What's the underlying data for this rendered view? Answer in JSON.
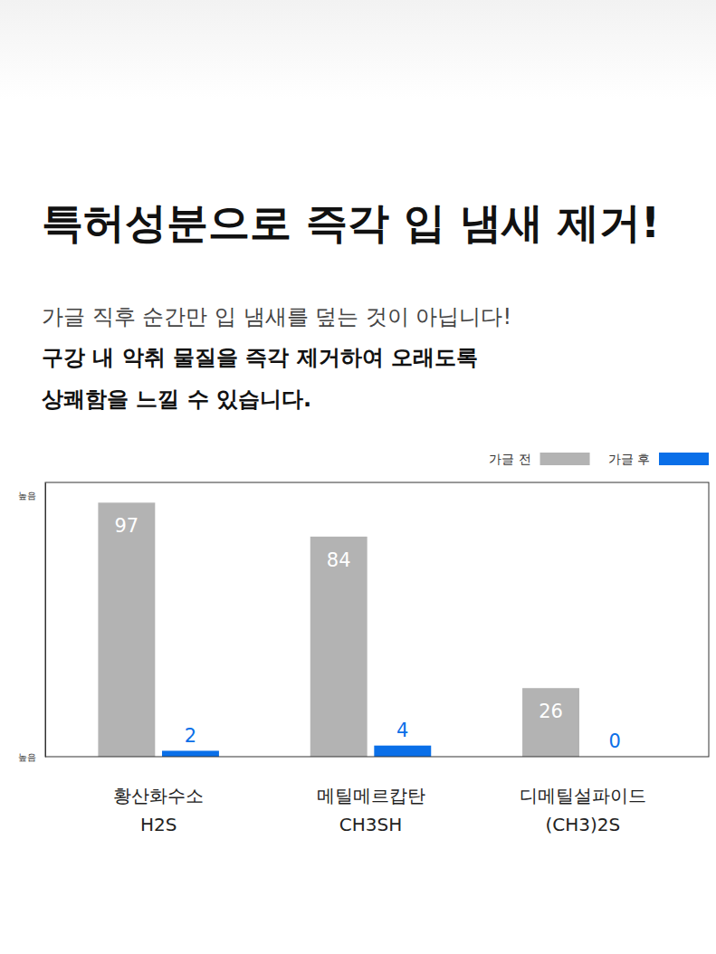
{
  "header": {
    "title": "특허성분으로 즉각 입 냄새 제거!",
    "text": "가글 직후 순간만 입 냄새를 덮는 것이 아닙니다!",
    "bold_lines": [
      "구강 내 악취 물질을 즉각 제거하여 오래도록",
      "상쾌함을 느낄 수 있습니다."
    ]
  },
  "chart_data": {
    "type": "bar",
    "categories": [
      "황산화수소\nH2S",
      "메틸메르캅탄\nCH3SH",
      "디메틸설파이드\n(CH3)2S"
    ],
    "series": [
      {
        "name": "가글 전",
        "color": "#b3b3b3",
        "values": [
          97,
          84,
          26
        ]
      },
      {
        "name": "가글 후",
        "color": "#0a6fe8",
        "values": [
          2,
          4,
          0
        ]
      }
    ],
    "ylim": [
      0,
      105
    ],
    "yticks": [
      {
        "value": 0,
        "label": "높음"
      },
      {
        "value": 100,
        "label": "높음"
      }
    ],
    "data_labels": true,
    "legend": "top-right",
    "grid": false
  }
}
